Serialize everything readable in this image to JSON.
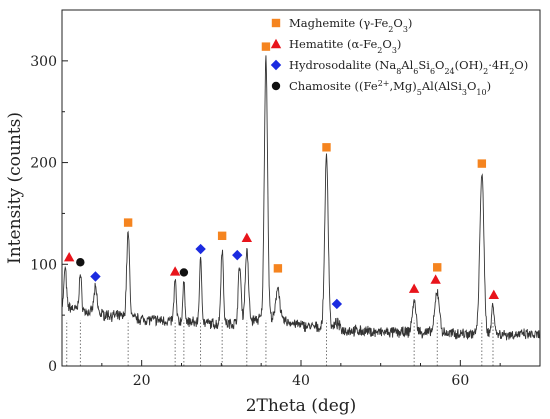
{
  "chart_data": {
    "type": "line",
    "xlabel": "2Theta (deg)",
    "ylabel": "Intensity (counts)",
    "xlim": [
      10,
      70
    ],
    "ylim": [
      0,
      350
    ],
    "xticks": [
      20,
      40,
      60
    ],
    "yticks": [
      0,
      100,
      200,
      300
    ],
    "grid": false,
    "legend_placement": "top-right",
    "legend": [
      {
        "label_html": "Maghemite (γ-Fe<tspan baseline-shift='sub' font-size='8'>2</tspan>O<tspan baseline-shift='sub' font-size='8'>3</tspan>)",
        "marker": "square",
        "color": "#F5841F"
      },
      {
        "label_html": "Hematite (α-Fe<tspan baseline-shift='sub' font-size='8'>2</tspan>O<tspan baseline-shift='sub' font-size='8'>3</tspan>)",
        "marker": "triangle",
        "color": "#E8141B"
      },
      {
        "label_html": "Hydrosodalite (Na<tspan baseline-shift='sub' font-size='8'>8</tspan>Al<tspan baseline-shift='sub' font-size='8'>6</tspan>Si<tspan baseline-shift='sub' font-size='8'>6</tspan>O<tspan baseline-shift='sub' font-size='8'>24</tspan>(OH)<tspan baseline-shift='sub' font-size='8'>2</tspan>·4H<tspan baseline-shift='sub' font-size='8'>2</tspan>O)",
        "marker": "diamond",
        "color": "#1B2BE0"
      },
      {
        "label_html": "Chamosite ((Fe<tspan baseline-shift='super' font-size='8'>2+</tspan>,Mg)<tspan baseline-shift='sub' font-size='8'>5</tspan>Al(AlSi<tspan baseline-shift='sub' font-size='8'>3</tspan>O<tspan baseline-shift='sub' font-size='8'>10</tspan>)",
        "marker": "circle",
        "color": "#111111"
      }
    ],
    "base_curve": [
      [
        10,
        60
      ],
      [
        12,
        55
      ],
      [
        14,
        52
      ],
      [
        16,
        50
      ],
      [
        18,
        48
      ],
      [
        20,
        46
      ],
      [
        22,
        45
      ],
      [
        24,
        44
      ],
      [
        26,
        43
      ],
      [
        28,
        42
      ],
      [
        30,
        41
      ],
      [
        32,
        42
      ],
      [
        34,
        45
      ],
      [
        36,
        48
      ],
      [
        38,
        44
      ],
      [
        40,
        40
      ],
      [
        42,
        38
      ],
      [
        44,
        36
      ],
      [
        46,
        35
      ],
      [
        48,
        34
      ],
      [
        50,
        33
      ],
      [
        52,
        33
      ],
      [
        54,
        33
      ],
      [
        56,
        33
      ],
      [
        58,
        32
      ],
      [
        60,
        32
      ],
      [
        62,
        32
      ],
      [
        64,
        32
      ],
      [
        66,
        31
      ],
      [
        68,
        31
      ],
      [
        70,
        30
      ]
    ],
    "peaks": [
      {
        "x": 10.4,
        "y": 97,
        "w": 0.14
      },
      {
        "x": 12.3,
        "y": 90,
        "w": 0.15
      },
      {
        "x": 14.2,
        "y": 76,
        "w": 0.2
      },
      {
        "x": 18.3,
        "y": 131,
        "w": 0.18
      },
      {
        "x": 24.2,
        "y": 84,
        "w": 0.14
      },
      {
        "x": 25.3,
        "y": 80,
        "w": 0.14
      },
      {
        "x": 27.4,
        "y": 103,
        "w": 0.15
      },
      {
        "x": 30.1,
        "y": 115,
        "w": 0.16
      },
      {
        "x": 32.3,
        "y": 98,
        "w": 0.18
      },
      {
        "x": 33.2,
        "y": 114,
        "w": 0.2
      },
      {
        "x": 35.6,
        "y": 304,
        "w": 0.2
      },
      {
        "x": 37.1,
        "y": 79,
        "w": 0.22
      },
      {
        "x": 43.2,
        "y": 206,
        "w": 0.22
      },
      {
        "x": 44.5,
        "y": 42,
        "w": 0.3
      },
      {
        "x": 54.2,
        "y": 63,
        "w": 0.24
      },
      {
        "x": 57.1,
        "y": 73,
        "w": 0.28
      },
      {
        "x": 62.7,
        "y": 190,
        "w": 0.25
      },
      {
        "x": 64.1,
        "y": 62,
        "w": 0.16
      }
    ],
    "markers": [
      {
        "phase": "Maghemite",
        "x": 18.3,
        "y": 141
      },
      {
        "phase": "Maghemite",
        "x": 30.1,
        "y": 128
      },
      {
        "phase": "Maghemite",
        "x": 35.6,
        "y": 314
      },
      {
        "phase": "Maghemite",
        "x": 37.1,
        "y": 96
      },
      {
        "phase": "Maghemite",
        "x": 43.2,
        "y": 215
      },
      {
        "phase": "Maghemite",
        "x": 57.1,
        "y": 97
      },
      {
        "phase": "Maghemite",
        "x": 62.7,
        "y": 199
      },
      {
        "phase": "Hematite",
        "x": 10.9,
        "y": 107
      },
      {
        "phase": "Hematite",
        "x": 24.2,
        "y": 93
      },
      {
        "phase": "Hematite",
        "x": 33.2,
        "y": 126
      },
      {
        "phase": "Hematite",
        "x": 54.2,
        "y": 76
      },
      {
        "phase": "Hematite",
        "x": 56.9,
        "y": 85
      },
      {
        "phase": "Hematite",
        "x": 64.2,
        "y": 70
      },
      {
        "phase": "Hydrosodalite",
        "x": 14.2,
        "y": 88
      },
      {
        "phase": "Hydrosodalite",
        "x": 27.4,
        "y": 115
      },
      {
        "phase": "Hydrosodalite",
        "x": 32.0,
        "y": 109
      },
      {
        "phase": "Hydrosodalite",
        "x": 44.5,
        "y": 61
      },
      {
        "phase": "Chamosite",
        "x": 12.3,
        "y": 102
      },
      {
        "phase": "Chamosite",
        "x": 25.3,
        "y": 92
      }
    ],
    "reference_lines": [
      10.6,
      12.3,
      18.3,
      24.2,
      25.3,
      27.4,
      30.1,
      33.2,
      35.6,
      43.2,
      54.2,
      57.1,
      62.7,
      64.1
    ]
  }
}
